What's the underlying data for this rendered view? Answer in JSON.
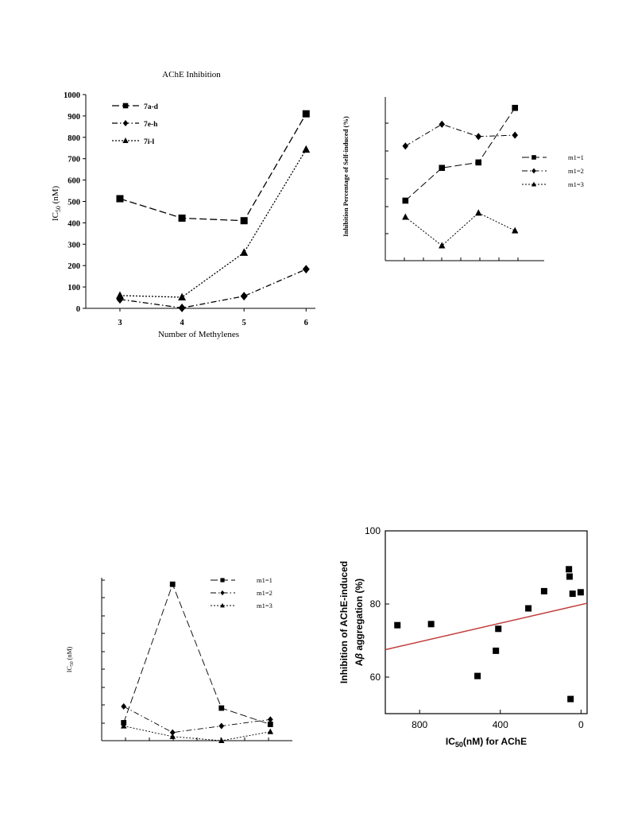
{
  "chart_data": [
    {
      "type": "line",
      "title": "AChE Inhibition",
      "xlabel": "Number of Methylenes",
      "ylabel": "IC50 (nM)",
      "categories": [
        "3",
        "4",
        "5",
        "6"
      ],
      "x": [
        3,
        4,
        5,
        6
      ],
      "xlim": [
        2.45,
        6.15
      ],
      "ylim": [
        0,
        1000
      ],
      "yticks": [
        "0",
        "100",
        "200",
        "300",
        "400",
        "500",
        "600",
        "700",
        "800",
        "900",
        "1000"
      ],
      "legend_position": "top-left",
      "series": [
        {
          "name": "7a-d",
          "marker": "square",
          "values": [
            513,
            422,
            410,
            910
          ]
        },
        {
          "name": "7e-h",
          "marker": "diamond",
          "values": [
            42,
            2,
            57,
            183
          ]
        },
        {
          "name": "7i-l",
          "marker": "triangle",
          "values": [
            60,
            52,
            261,
            743
          ]
        }
      ]
    },
    {
      "type": "line",
      "ylabel": "Inhibition Percentage of Self-induced (%)",
      "x": [
        1,
        2,
        3,
        4
      ],
      "xlim": [
        0.45,
        4.8
      ],
      "ylim": [
        0,
        6
      ],
      "legend_position": "right",
      "series": [
        {
          "name": "m1=1",
          "marker": "square",
          "values": [
            2.2,
            3.4,
            3.6,
            5.6
          ]
        },
        {
          "name": "m1=2",
          "marker": "diamond",
          "values": [
            4.2,
            5.0,
            4.55,
            4.6
          ]
        },
        {
          "name": "m1=3",
          "marker": "triangle",
          "values": [
            1.6,
            0.55,
            1.75,
            1.1
          ]
        }
      ]
    },
    {
      "type": "line",
      "ylabel": "IC50 (nM)",
      "x": [
        1,
        2,
        3,
        4
      ],
      "xlim": [
        0.55,
        4.45
      ],
      "ylim": [
        0,
        10
      ],
      "legend_position": "top-right",
      "series": [
        {
          "name": "m1=1",
          "marker": "square",
          "values": [
            1.1,
            9.6,
            2.0,
            1.0
          ]
        },
        {
          "name": "m1=2",
          "marker": "diamond",
          "values": [
            2.1,
            0.5,
            0.9,
            1.3
          ]
        },
        {
          "name": "m1=3",
          "marker": "triangle",
          "values": [
            0.9,
            0.25,
            0.0,
            0.55
          ]
        }
      ]
    },
    {
      "type": "scatter",
      "xlabel": "IC50(nM) for AChE",
      "ylabel": "Inhibition of AChE-induced Aβ aggregation (%)",
      "xlim": [
        970,
        -30
      ],
      "ylim": [
        50,
        100
      ],
      "xticks": [
        "800",
        "400",
        "0"
      ],
      "yticks": [
        "60",
        "80",
        "100"
      ],
      "points": [
        {
          "x": 910,
          "y": 74.2
        },
        {
          "x": 743,
          "y": 74.5
        },
        {
          "x": 513,
          "y": 60.3
        },
        {
          "x": 422,
          "y": 67.2
        },
        {
          "x": 410,
          "y": 73.2
        },
        {
          "x": 261,
          "y": 78.8
        },
        {
          "x": 183,
          "y": 83.5
        },
        {
          "x": 60,
          "y": 89.5
        },
        {
          "x": 57,
          "y": 87.5
        },
        {
          "x": 42,
          "y": 82.8
        },
        {
          "x": 2,
          "y": 83.2
        },
        {
          "x": 52,
          "y": 54.0
        }
      ],
      "trendline": {
        "x": [
          970,
          -30
        ],
        "y": [
          67.5,
          80.2
        ],
        "color": "#c23b3b"
      }
    }
  ]
}
